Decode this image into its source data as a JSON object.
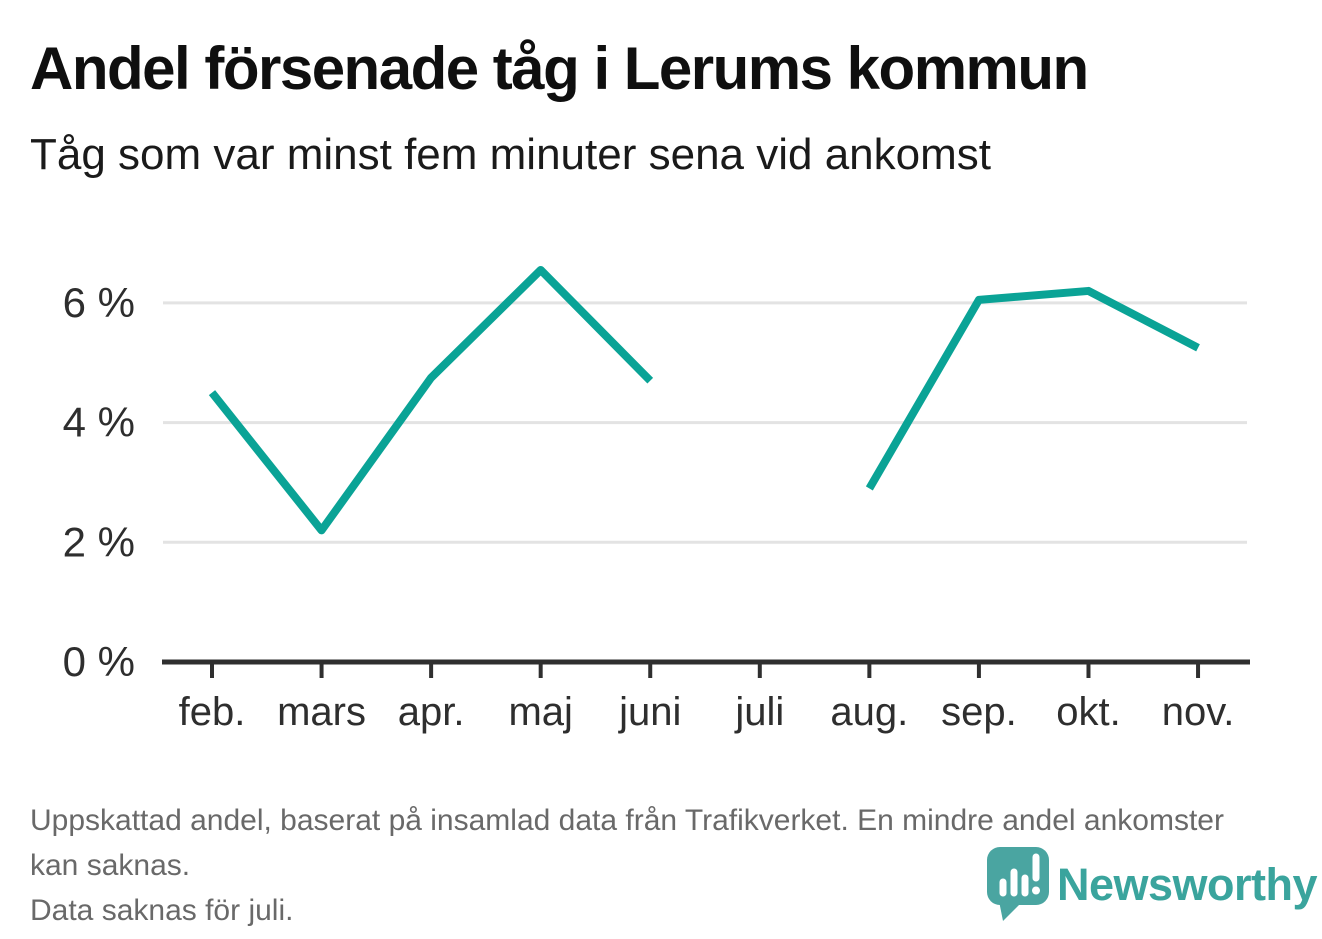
{
  "header": {
    "title": "Andel försenade tåg i Lerums kommun",
    "subtitle": "Tåg som var minst fem minuter sena vid ankomst"
  },
  "chart_data": {
    "type": "line",
    "title": "Andel försenade tåg i Lerums kommun",
    "subtitle": "Tåg som var minst fem minuter sena vid ankomst",
    "categories": [
      "feb.",
      "mars",
      "apr.",
      "maj",
      "juni",
      "juli",
      "aug.",
      "sep.",
      "okt.",
      "nov."
    ],
    "values": [
      4.5,
      2.2,
      4.75,
      6.55,
      4.7,
      null,
      2.9,
      6.05,
      6.2,
      5.25
    ],
    "unit": "%",
    "xlabel": "",
    "ylabel": "%",
    "yticks": [
      0,
      2,
      4,
      6
    ],
    "ytick_labels": [
      "0 %",
      "2 %",
      "4 %",
      "6 %"
    ],
    "ylim": [
      0,
      7.2
    ],
    "grid": "horizontal-only",
    "legend": "none",
    "missing_data": [
      "juli"
    ],
    "line_color": "#0aa396",
    "gridline_color": "#e3e3e3",
    "axis_color": "#2f2f2f",
    "tick_label_color": "#2e2e2e"
  },
  "footer": {
    "note": "Uppskattad andel, baserat på insamlad data från Trafikverket. En mindre andel ankomster kan saknas.",
    "note2": "Data saknas för juli.",
    "brand": {
      "name": "Newsworthy",
      "icon": "bar-chart-speech-bubble",
      "text_color": "#3aa49d",
      "icon_color": "#4aa5a1"
    }
  }
}
